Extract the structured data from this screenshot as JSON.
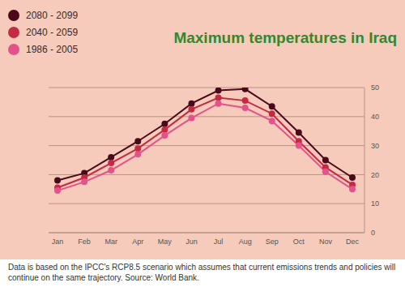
{
  "chart_data": {
    "type": "line",
    "title": "Maximum temperatures in Iraq",
    "note": "Data is based on the IPCC's RCP8.5 scenario which assumes that current emissions trends and policies will continue on the same trajectory. Source: World Bank.",
    "categories": [
      "Jan",
      "Feb",
      "Mar",
      "Apr",
      "May",
      "Jun",
      "Jul",
      "Aug",
      "Sep",
      "Oct",
      "Nov",
      "Dec"
    ],
    "series": [
      {
        "name": "2080 - 2099",
        "color": "#4a0a1c",
        "values": [
          18,
          20.5,
          26,
          31.5,
          37.5,
          44.5,
          49,
          49.5,
          43.5,
          34.5,
          25,
          19
        ]
      },
      {
        "name": "2040 - 2059",
        "color": "#c42a44",
        "values": [
          15.5,
          19,
          24,
          29,
          35.5,
          42.5,
          46.5,
          45.5,
          41,
          31.5,
          22.5,
          16.5
        ]
      },
      {
        "name": "1986 - 2005",
        "color": "#e4528c",
        "values": [
          14.5,
          17.5,
          21.5,
          27,
          33.5,
          39.5,
          44.5,
          43,
          38.5,
          30,
          21,
          15
        ]
      }
    ],
    "ylim": [
      0,
      50
    ],
    "yticks": [
      0,
      10,
      20,
      30,
      40,
      50
    ],
    "grid": true,
    "legend": "top-left",
    "marker": "circle"
  }
}
